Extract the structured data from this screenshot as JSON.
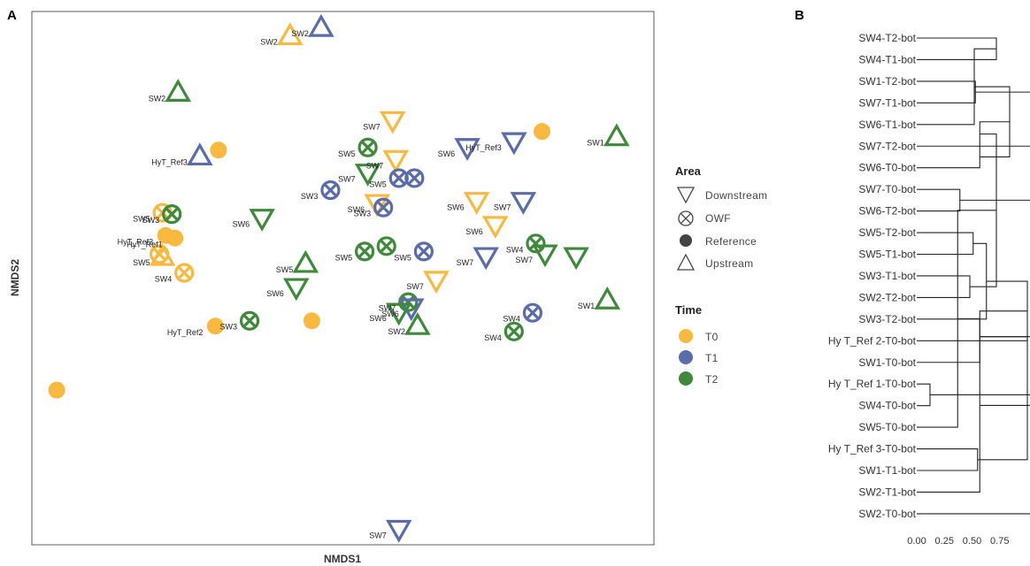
{
  "panels": {
    "a": "A",
    "b": "B"
  },
  "colors": {
    "T0": "#F8B93E",
    "T1": "#5A6DAA",
    "T2": "#3E8A3A"
  },
  "legend": {
    "area_title": "Area",
    "area_items": [
      {
        "label": "Downstream",
        "icon": "triangle-down-icon"
      },
      {
        "label": "OWF",
        "icon": "circle-x-icon"
      },
      {
        "label": "Reference",
        "icon": "filled-circle-icon"
      },
      {
        "label": "Upstream",
        "icon": "triangle-up-icon"
      }
    ],
    "time_title": "Time",
    "time_items": [
      {
        "label": "T0",
        "key": "T0"
      },
      {
        "label": "T1",
        "key": "T1"
      },
      {
        "label": "T2",
        "key": "T2"
      }
    ]
  },
  "chart_data": [
    {
      "type": "scatter",
      "title": "",
      "xlabel": "NMDS1",
      "ylabel": "NMDS2",
      "xlim": [
        -1,
        1
      ],
      "ylim": [
        -1,
        1
      ],
      "grid": false,
      "legend_position": "right",
      "points": [
        {
          "x": -0.17,
          "y": 0.909,
          "area": "Upstream",
          "time": "T0",
          "label": "SW2"
        },
        {
          "x": -0.07,
          "y": 0.94,
          "area": "Upstream",
          "time": "T1",
          "label": "SW2"
        },
        {
          "x": -0.53,
          "y": 0.697,
          "area": "Upstream",
          "time": "T2",
          "label": "SW2"
        },
        {
          "x": 0.16,
          "y": 0.591,
          "area": "Downstream",
          "time": "T0",
          "label": "SW7"
        },
        {
          "x": 0.64,
          "y": 0.55,
          "area": "Reference",
          "time": "T0",
          "label": ""
        },
        {
          "x": 0.88,
          "y": 0.53,
          "area": "Upstream",
          "time": "T2",
          "label": "SW1"
        },
        {
          "x": 0.55,
          "y": 0.512,
          "area": "Downstream",
          "time": "T1",
          "label": "HyT_Ref3"
        },
        {
          "x": 0.4,
          "y": 0.49,
          "area": "Downstream",
          "time": "T1",
          "label": "SW6"
        },
        {
          "x": -0.46,
          "y": 0.458,
          "area": "Upstream",
          "time": "T1",
          "label": "HyT_Ref3"
        },
        {
          "x": -0.4,
          "y": 0.48,
          "area": "Reference",
          "time": "T0",
          "label": ""
        },
        {
          "x": 0.08,
          "y": 0.49,
          "area": "OWF",
          "time": "T2",
          "label": "SW5"
        },
        {
          "x": 0.17,
          "y": 0.445,
          "area": "Downstream",
          "time": "T0",
          "label": "SW7"
        },
        {
          "x": 0.08,
          "y": 0.394,
          "area": "Downstream",
          "time": "T2",
          "label": "SW7"
        },
        {
          "x": 0.18,
          "y": 0.375,
          "area": "OWF",
          "time": "T1",
          "label": "SW5"
        },
        {
          "x": 0.23,
          "y": 0.375,
          "area": "OWF",
          "time": "T1",
          "label": ""
        },
        {
          "x": -0.04,
          "y": 0.33,
          "area": "OWF",
          "time": "T1",
          "label": "SW3"
        },
        {
          "x": 0.43,
          "y": 0.288,
          "area": "Downstream",
          "time": "T0",
          "label": "SW6"
        },
        {
          "x": 0.58,
          "y": 0.288,
          "area": "Downstream",
          "time": "T1",
          "label": "SW7"
        },
        {
          "x": 0.11,
          "y": 0.28,
          "area": "Downstream",
          "time": "T0",
          "label": "SW6"
        },
        {
          "x": 0.13,
          "y": 0.265,
          "area": "OWF",
          "time": "T1",
          "label": "SW3"
        },
        {
          "x": 0.49,
          "y": 0.198,
          "area": "Downstream",
          "time": "T0",
          "label": "SW6"
        },
        {
          "x": -0.58,
          "y": 0.245,
          "area": "OWF",
          "time": "T0",
          "label": "SW5"
        },
        {
          "x": -0.55,
          "y": 0.24,
          "area": "OWF",
          "time": "T2",
          "label": "SW3"
        },
        {
          "x": -0.26,
          "y": 0.225,
          "area": "Downstream",
          "time": "T2",
          "label": "SW6"
        },
        {
          "x": -0.57,
          "y": 0.16,
          "area": "Reference",
          "time": "T0",
          "label": "HyT_Ref3"
        },
        {
          "x": -0.54,
          "y": 0.15,
          "area": "Reference",
          "time": "T0",
          "label": "HyT_Ref1"
        },
        {
          "x": -0.58,
          "y": 0.081,
          "area": "Upstream",
          "time": "T0",
          "label": "SW5"
        },
        {
          "x": -0.59,
          "y": 0.09,
          "area": "OWF",
          "time": "T0",
          "label": ""
        },
        {
          "x": 0.07,
          "y": 0.1,
          "area": "OWF",
          "time": "T2",
          "label": "SW5"
        },
        {
          "x": 0.14,
          "y": 0.12,
          "area": "OWF",
          "time": "T2",
          "label": ""
        },
        {
          "x": 0.26,
          "y": 0.1,
          "area": "OWF",
          "time": "T1",
          "label": "SW5"
        },
        {
          "x": 0.62,
          "y": 0.13,
          "area": "OWF",
          "time": "T2",
          "label": "SW4"
        },
        {
          "x": 0.46,
          "y": 0.081,
          "area": "Downstream",
          "time": "T1",
          "label": "SW7"
        },
        {
          "x": 0.65,
          "y": 0.091,
          "area": "Downstream",
          "time": "T2",
          "label": "SW7"
        },
        {
          "x": 0.75,
          "y": 0.081,
          "area": "Downstream",
          "time": "T2",
          "label": ""
        },
        {
          "x": -0.12,
          "y": 0.055,
          "area": "Upstream",
          "time": "T2",
          "label": "SW5"
        },
        {
          "x": -0.51,
          "y": 0.02,
          "area": "OWF",
          "time": "T0",
          "label": "SW4"
        },
        {
          "x": 0.3,
          "y": -0.008,
          "area": "Downstream",
          "time": "T0",
          "label": "SW7"
        },
        {
          "x": -0.15,
          "y": -0.035,
          "area": "Downstream",
          "time": "T2",
          "label": "SW6"
        },
        {
          "x": 0.85,
          "y": -0.082,
          "area": "Upstream",
          "time": "T2",
          "label": "SW1"
        },
        {
          "x": 0.21,
          "y": -0.09,
          "area": "OWF",
          "time": "T2",
          "label": "SW7"
        },
        {
          "x": 0.22,
          "y": -0.111,
          "area": "Downstream",
          "time": "T1",
          "label": "SW6"
        },
        {
          "x": 0.61,
          "y": -0.13,
          "area": "OWF",
          "time": "T1",
          "label": "SW4"
        },
        {
          "x": 0.18,
          "y": -0.128,
          "area": "Downstream",
          "time": "T2",
          "label": "SW6"
        },
        {
          "x": -0.3,
          "y": -0.16,
          "area": "OWF",
          "time": "T2",
          "label": "SW3"
        },
        {
          "x": -0.1,
          "y": -0.16,
          "area": "Reference",
          "time": "T0",
          "label": ""
        },
        {
          "x": -0.41,
          "y": -0.18,
          "area": "Reference",
          "time": "T0",
          "label": "HyT_Ref2"
        },
        {
          "x": 0.24,
          "y": -0.178,
          "area": "Upstream",
          "time": "T2",
          "label": "SW2"
        },
        {
          "x": 0.55,
          "y": -0.2,
          "area": "OWF",
          "time": "T2",
          "label": "SW4"
        },
        {
          "x": -0.92,
          "y": -0.42,
          "area": "Reference",
          "time": "T0",
          "label": ""
        },
        {
          "x": 0.18,
          "y": -0.942,
          "area": "Downstream",
          "time": "T1",
          "label": "SW7"
        }
      ]
    },
    {
      "type": "dendrogram",
      "leaves": [
        "SW4-T2-bot",
        "SW4-T1-bot",
        "SW1-T2-bot",
        "SW7-T1-bot",
        "SW6-T1-bot",
        "SW7-T2-bot",
        "SW6-T0-bot",
        "SW7-T0-bot",
        "SW6-T2-bot",
        "SW5-T2-bot",
        "SW5-T1-bot",
        "SW3-T1-bot",
        "SW2-T2-bot",
        "SW3-T2-bot",
        "Hy T_Ref 2-T0-bot",
        "SW1-T0-bot",
        "Hy T_Ref 1-T0-bot",
        "SW4-T0-bot",
        "SW5-T0-bot",
        "Hy T_Ref 3-T0-bot",
        "SW1-T1-bot",
        "SW2-T1-bot",
        "SW2-T0-bot"
      ],
      "xticks": [
        "0.00",
        "0.25",
        "0.50",
        "0.75"
      ],
      "xlim": [
        0,
        1
      ],
      "merges": [
        [
          0,
          1,
          0.72
        ],
        [
          2,
          3,
          0.53
        ],
        [
          4,
          23,
          0.52
        ],
        [
          5,
          6,
          0.57
        ],
        [
          7,
          8,
          0.39
        ],
        [
          25,
          26,
          0.84
        ],
        [
          24,
          27,
          1.17
        ],
        [
          9,
          10,
          0.51
        ],
        [
          11,
          12,
          0.48
        ],
        [
          28,
          29,
          0.57
        ],
        [
          13,
          30,
          0.63
        ],
        [
          31,
          32,
          0.72
        ],
        [
          14,
          33,
          1.0
        ],
        [
          16,
          17,
          0.12
        ],
        [
          34,
          18,
          0.37
        ],
        [
          15,
          35,
          0.57
        ],
        [
          19,
          20,
          0.55
        ],
        [
          37,
          21,
          0.57
        ],
        [
          36,
          38,
          1.12
        ],
        [
          22,
          40,
          1.6
        ],
        [
          41,
          42,
          1.6
        ],
        [
          38,
          39,
          1.0
        ]
      ]
    }
  ]
}
